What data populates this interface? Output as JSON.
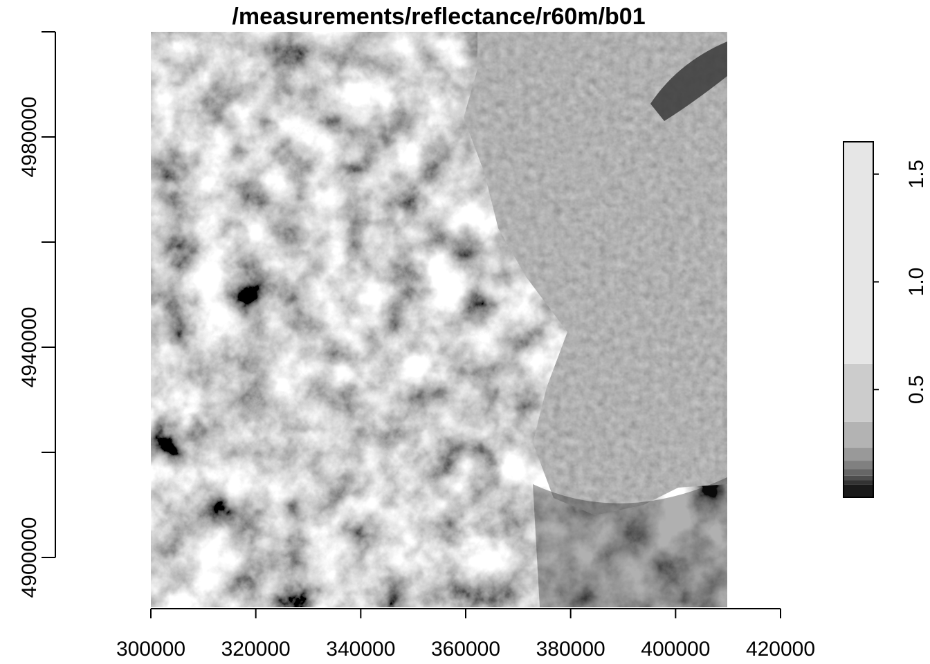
{
  "chart_data": {
    "type": "heatmap",
    "title": "/measurements/reflectance/r60m/b01",
    "xlabel": "",
    "ylabel": "",
    "xlim": [
      300000,
      420000
    ],
    "ylim": [
      4890000,
      4980000
    ],
    "x_ticks": [
      {
        "value": 300000,
        "label": "300000"
      },
      {
        "value": 320000,
        "label": "320000"
      },
      {
        "value": 340000,
        "label": "340000"
      },
      {
        "value": 360000,
        "label": "360000"
      },
      {
        "value": 380000,
        "label": "380000"
      },
      {
        "value": 400000,
        "label": "400000"
      },
      {
        "value": 420000,
        "label": "420000"
      }
    ],
    "y_ticks": [
      {
        "value": 4980000,
        "label": "4980000"
      },
      {
        "value": 4960000,
        "label": ""
      },
      {
        "value": 4940000,
        "label": "4940000"
      },
      {
        "value": 4920000,
        "label": ""
      },
      {
        "value": 4900000,
        "label": "4900000"
      }
    ],
    "raster_extent": {
      "xmin": 300000,
      "xmax": 409800,
      "ymin": 4890000,
      "ymax": 4999800
    },
    "grid": false,
    "colorscale": "grayscale",
    "legend": {
      "placement": "right",
      "range": [
        0,
        1.65
      ],
      "ticks": [
        {
          "value": 0.5,
          "label": "0.5"
        },
        {
          "value": 1.0,
          "label": "1.0"
        },
        {
          "value": 1.5,
          "label": "1.5"
        }
      ],
      "bins": [
        {
          "from": 0.0,
          "to": 0.06,
          "color": "#1a1a1a"
        },
        {
          "from": 0.06,
          "to": 0.08,
          "color": "#333333"
        },
        {
          "from": 0.08,
          "to": 0.1,
          "color": "#4d4d4d"
        },
        {
          "from": 0.1,
          "to": 0.13,
          "color": "#666666"
        },
        {
          "from": 0.13,
          "to": 0.17,
          "color": "#808080"
        },
        {
          "from": 0.17,
          "to": 0.23,
          "color": "#999999"
        },
        {
          "from": 0.23,
          "to": 0.35,
          "color": "#b3b3b3"
        },
        {
          "from": 0.35,
          "to": 0.62,
          "color": "#cccccc"
        },
        {
          "from": 0.62,
          "to": 1.65,
          "color": "#e6e6e6"
        }
      ]
    }
  }
}
